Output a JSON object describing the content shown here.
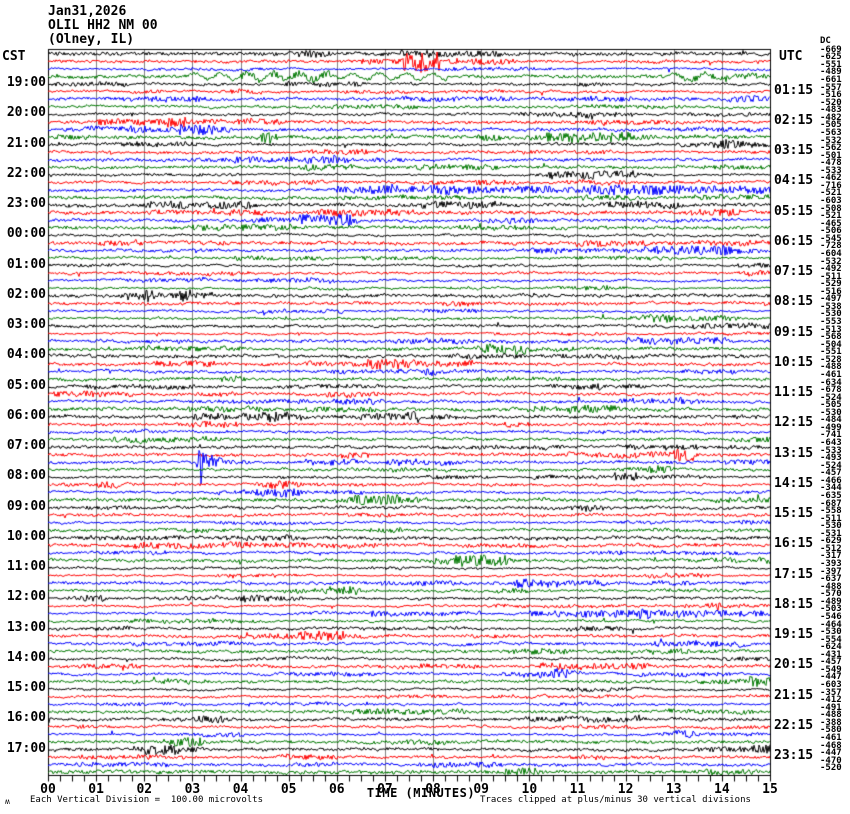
{
  "title": {
    "date": "Jan31,2026",
    "station": "OLIL HH2 NM 00",
    "location": "(Olney, IL)"
  },
  "axes": {
    "left_header": "CST",
    "right_header": "UTC",
    "dc_header": "DC",
    "x_label": "TIME (MINUTES)",
    "x_ticks": [
      "00",
      "01",
      "02",
      "03",
      "04",
      "05",
      "06",
      "07",
      "08",
      "09",
      "10",
      "11",
      "12",
      "13",
      "14",
      "15"
    ]
  },
  "footer": {
    "scale_note": "Each Vertical Division =  100.00 microvolts",
    "clip_note": "Traces clipped at plus/minus 30 vertical divisions",
    "corner_glyph": "ʍ"
  },
  "chart_data": {
    "type": "seismogram-helicorder",
    "title": "OLIL HH2 NM 00 (Olney, IL) Jan31,2026",
    "minutes_per_line": 15,
    "lines_per_hour": 4,
    "num_lines": 96,
    "start_time_cst": "18:00",
    "start_time_utc": "00:00",
    "vertical_division_microvolts": 100.0,
    "clip_divisions": 30,
    "trace_colors": [
      "#000000",
      "#ff0000",
      "#0000ff",
      "#007800"
    ],
    "grid_color": "#808080",
    "border_color": "#000000",
    "cst_labels": [
      "19:00",
      "20:00",
      "21:00",
      "22:00",
      "23:00",
      "00:00",
      "01:00",
      "02:00",
      "03:00",
      "04:00",
      "05:00",
      "06:00",
      "07:00",
      "08:00",
      "09:00",
      "10:00",
      "11:00",
      "12:00",
      "13:00",
      "14:00",
      "15:00",
      "16:00",
      "17:00"
    ],
    "utc_labels": [
      "01:15",
      "02:15",
      "03:15",
      "04:15",
      "05:15",
      "06:15",
      "07:15",
      "08:15",
      "09:15",
      "10:15",
      "11:15",
      "12:15",
      "13:15",
      "14:15",
      "15:15",
      "16:15",
      "17:15",
      "18:15",
      "19:15",
      "20:15",
      "21:15",
      "22:15",
      "23:15"
    ],
    "dc_offsets": [
      -669,
      -625,
      -551,
      -489,
      -661,
      -557,
      -516,
      -520,
      -483,
      -482,
      -505,
      -563,
      -532,
      -562,
      -501,
      -478,
      -533,
      -462,
      -716,
      -521,
      -603,
      -508,
      -521,
      -465,
      -506,
      -545,
      -728,
      -604,
      -532,
      -492,
      -511,
      -529,
      -516,
      -497,
      -538,
      -530,
      -553,
      -513,
      -568,
      -504,
      -551,
      -528,
      -488,
      -461,
      -634,
      -678,
      -524,
      -505,
      -530,
      -484,
      -499,
      -741,
      -643,
      -533,
      -493,
      -524,
      -457,
      -466,
      -344,
      -635,
      -687,
      -558,
      -511,
      -530,
      -531,
      -629,
      -512,
      -317,
      -393,
      -397,
      -637,
      -488,
      -570,
      -489,
      -503,
      -546,
      -464,
      -530,
      -554,
      -624,
      -431,
      -457,
      -549,
      -447,
      -603,
      -357,
      -412,
      -491,
      -488,
      -388,
      -580,
      -461,
      -468,
      -447,
      -470,
      -520
    ],
    "events": [
      {
        "line": 3,
        "type": "wave",
        "start_min": 2.9,
        "end_min": 8.3,
        "amp": 3.0,
        "period_min": 0.55,
        "desc": "slow long-period wander on 18:45 green trace"
      },
      {
        "line": 3,
        "type": "wave",
        "start_min": 12.8,
        "end_min": 14.2,
        "amp": 2.5,
        "period_min": 0.7,
        "desc": "slow hump near minute 13 on 18:45 green trace"
      },
      {
        "line": 11,
        "type": "burst",
        "start_min": 4.3,
        "end_min": 4.8,
        "amp": 5.0,
        "desc": "small green burst on 20:45 trace"
      },
      {
        "line": 18,
        "type": "dense",
        "start_min": 6.0,
        "end_min": 15.0,
        "amp": 2.2,
        "desc": "elevated noise on 22:30 blue trace"
      },
      {
        "line": 54,
        "type": "quake",
        "start_min": 3.05,
        "end_min": 4.6,
        "amp": 13.0,
        "spike_down": 22,
        "spike_up": 9,
        "desc": "large blue transient at 07:30 CST / 13:30 UTC"
      },
      {
        "line": 57,
        "type": "burst",
        "start_min": 4.25,
        "end_min": 5.3,
        "amp": 4.0,
        "desc": "red burst on 08:15 trace"
      },
      {
        "line": 74,
        "type": "dense",
        "start_min": 10.0,
        "end_min": 15.0,
        "amp": 2.0,
        "desc": "elevated noise on 12:30 blue trace"
      }
    ]
  }
}
